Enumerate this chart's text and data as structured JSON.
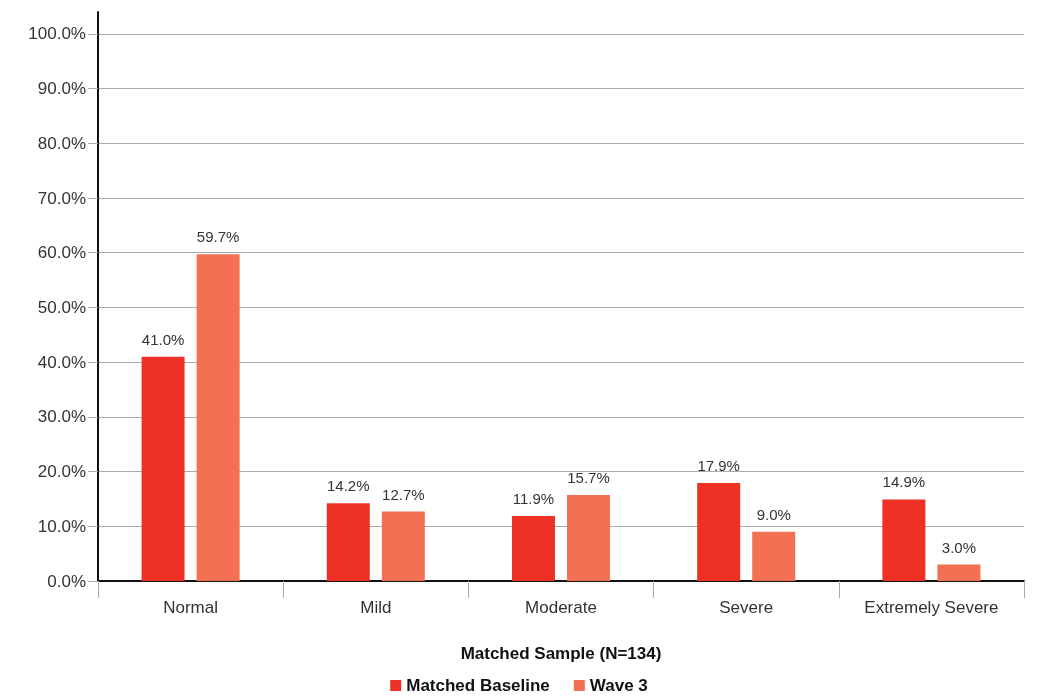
{
  "chart_data": {
    "type": "bar",
    "xlabel": "Matched Sample (N=134)",
    "categories": [
      "Normal",
      "Mild",
      "Moderate",
      "Severe",
      "Extremely Severe"
    ],
    "series": [
      {
        "name": "Matched Baseline",
        "color": "#ee3124",
        "values": [
          41.0,
          14.2,
          11.9,
          17.9,
          14.9
        ],
        "value_labels": [
          "41.0%",
          "14.2%",
          "11.9%",
          "17.9%",
          "14.9%"
        ]
      },
      {
        "name": "Wave 3",
        "color": "#f37052",
        "values": [
          59.7,
          12.7,
          15.7,
          9.0,
          3.0
        ],
        "value_labels": [
          "59.7%",
          "12.7%",
          "15.7%",
          "9.0%",
          "3.0%"
        ]
      }
    ],
    "ylim": [
      0,
      104
    ],
    "yticks": [
      {
        "value": 0,
        "label": "0.0%"
      },
      {
        "value": 10,
        "label": "10.0%"
      },
      {
        "value": 20,
        "label": "20.0%"
      },
      {
        "value": 30,
        "label": "30.0%"
      },
      {
        "value": 40,
        "label": "40.0%"
      },
      {
        "value": 50,
        "label": "50.0%"
      },
      {
        "value": 60,
        "label": "60.0%"
      },
      {
        "value": 70,
        "label": "70.0%"
      },
      {
        "value": 80,
        "label": "80.0%"
      },
      {
        "value": 90,
        "label": "90.0%"
      },
      {
        "value": 100,
        "label": "100.0%"
      }
    ],
    "grid": "y",
    "legend": "bottom"
  }
}
